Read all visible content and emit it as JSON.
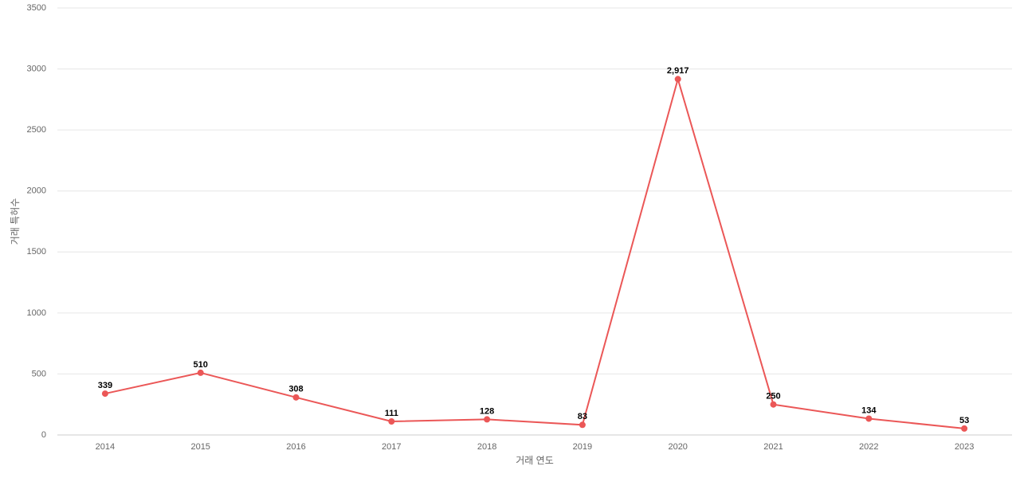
{
  "chart_data": {
    "type": "line",
    "x_label": "거래 연도",
    "y_label": "거래 특허수",
    "categories": [
      "2014",
      "2015",
      "2016",
      "2017",
      "2018",
      "2019",
      "2020",
      "2021",
      "2022",
      "2023"
    ],
    "values": [
      339,
      510,
      308,
      111,
      128,
      83,
      2917,
      250,
      134,
      53
    ],
    "value_labels": [
      "339",
      "510",
      "308",
      "111",
      "128",
      "83",
      "2,917",
      "250",
      "134",
      "53"
    ],
    "color": "#eb5757",
    "ylim": [
      0,
      3500
    ],
    "yticks": [
      0,
      500,
      1000,
      1500,
      2000,
      2500,
      3000,
      3500
    ],
    "grid": true
  }
}
